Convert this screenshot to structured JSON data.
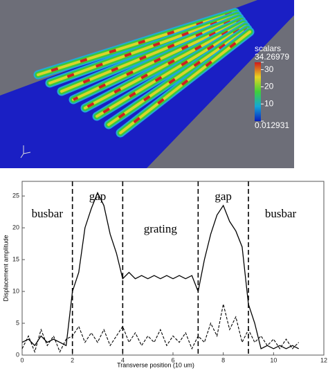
{
  "top_panel": {
    "colorbar_title": "scalars",
    "clim": [
      0.012931,
      34.26979
    ],
    "cticks": [
      34.26979,
      30,
      20,
      10,
      0.012931
    ]
  },
  "chart_data": {
    "type": "line",
    "xlabel": "Transverse position (10 um)",
    "ylabel": "Displacement amplitude",
    "x": [
      0,
      0.25,
      0.5,
      0.75,
      1,
      1.25,
      1.5,
      1.75,
      2,
      2.25,
      2.5,
      2.75,
      3,
      3.25,
      3.5,
      3.75,
      4,
      4.25,
      4.5,
      4.75,
      5,
      5.25,
      5.5,
      5.75,
      6,
      6.25,
      6.5,
      6.75,
      7,
      7.25,
      7.5,
      7.75,
      8,
      8.25,
      8.5,
      8.75,
      9,
      9.25,
      9.5,
      9.75,
      10,
      10.25,
      10.5,
      10.75,
      11
    ],
    "series": [
      {
        "color": "#000000",
        "style": "solid",
        "values": [
          2,
          2.5,
          1.5,
          3,
          2,
          2.5,
          2,
          1.5,
          10,
          13,
          20,
          23,
          25.5,
          23.5,
          19,
          16,
          12,
          13,
          12,
          12.5,
          12,
          12.5,
          12,
          12.5,
          12,
          12.5,
          12,
          12.5,
          10,
          15,
          19,
          22,
          23.5,
          21,
          19.5,
          17,
          8,
          5,
          1,
          1.5,
          1,
          1.5,
          1,
          1.5,
          1
        ]
      },
      {
        "color": "#000000",
        "style": "dashed",
        "values": [
          1,
          3,
          0.5,
          4,
          1.5,
          3,
          0.5,
          2.5,
          3,
          4.5,
          2,
          3.5,
          2,
          4,
          1.5,
          3,
          4.5,
          2,
          3.5,
          1.5,
          3,
          2,
          4,
          1.5,
          3,
          2,
          3.5,
          1,
          3,
          2,
          5,
          3,
          8,
          4,
          6,
          2,
          4,
          2,
          3,
          1.5,
          2.5,
          1,
          2.5,
          1,
          2
        ]
      }
    ],
    "dividers": [
      2,
      4,
      7,
      9
    ],
    "regions": [
      "busbar",
      "gap",
      "grating",
      "gap",
      "busbar"
    ],
    "xlim": [
      0,
      12
    ],
    "xticks": [
      0,
      2,
      4,
      6,
      8,
      10,
      12
    ],
    "ylim": [
      0,
      27.3
    ],
    "yticks": [
      0,
      5,
      10,
      15,
      20,
      25
    ]
  }
}
